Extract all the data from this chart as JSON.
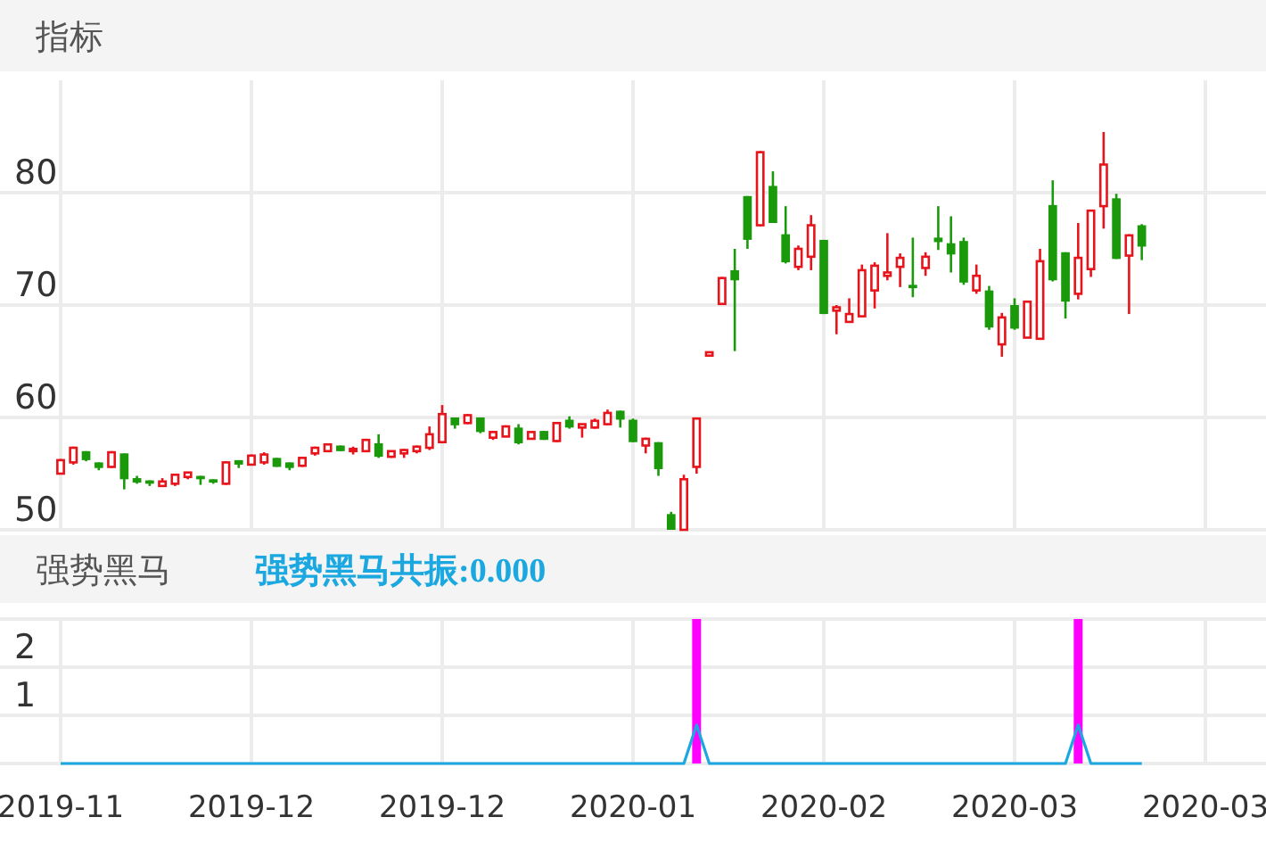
{
  "chart_data": [
    {
      "type": "candlestick",
      "title": "指标",
      "categories": [
        "2019-11",
        null,
        null,
        null,
        null,
        null,
        null,
        null,
        null,
        null,
        null,
        null,
        null,
        null,
        null,
        "2019-12",
        null,
        null,
        null,
        null,
        null,
        null,
        null,
        null,
        null,
        null,
        null,
        null,
        null,
        null,
        "2019-12",
        null,
        null,
        null,
        null,
        null,
        null,
        null,
        null,
        null,
        null,
        null,
        null,
        null,
        null,
        "2020-01",
        null,
        null,
        null,
        null,
        null,
        null,
        null,
        null,
        null,
        null,
        null,
        null,
        null,
        null,
        "2020-02",
        null,
        null,
        null,
        null,
        null,
        null,
        null,
        null,
        null,
        null,
        null,
        null,
        null,
        null,
        "2020-03",
        null,
        null,
        null,
        null,
        null,
        null,
        null,
        null,
        null,
        null,
        null,
        null,
        null,
        null,
        "2020-03"
      ],
      "ohlc": [
        [
          55.0,
          56.3,
          55.0,
          56.2
        ],
        [
          56.0,
          57.4,
          55.8,
          57.3
        ],
        [
          57.0,
          57.0,
          56.1,
          56.2
        ],
        [
          56.0,
          56.0,
          55.3,
          55.5
        ],
        [
          55.6,
          57.0,
          55.5,
          56.9
        ],
        [
          56.8,
          56.8,
          53.6,
          54.5
        ],
        [
          54.6,
          54.8,
          54.1,
          54.2
        ],
        [
          54.4,
          54.4,
          53.9,
          54.1
        ],
        [
          53.9,
          54.6,
          53.9,
          54.3
        ],
        [
          54.1,
          55.0,
          53.9,
          54.9
        ],
        [
          54.7,
          55.1,
          54.5,
          55.1
        ],
        [
          54.8,
          54.8,
          54.0,
          54.5
        ],
        [
          54.5,
          54.5,
          54.1,
          54.2
        ],
        [
          54.1,
          56.1,
          54.0,
          56.0
        ],
        [
          56.2,
          56.2,
          55.5,
          55.8
        ],
        [
          55.8,
          56.7,
          55.8,
          56.6
        ],
        [
          56.0,
          56.9,
          55.8,
          56.7
        ],
        [
          56.4,
          56.4,
          55.6,
          55.6
        ],
        [
          56.0,
          56.0,
          55.3,
          55.5
        ],
        [
          55.7,
          56.4,
          55.6,
          56.4
        ],
        [
          56.8,
          57.4,
          56.6,
          57.3
        ],
        [
          57.0,
          57.7,
          56.9,
          57.6
        ],
        [
          57.5,
          57.5,
          57.0,
          57.0
        ],
        [
          57.0,
          57.4,
          56.7,
          57.2
        ],
        [
          57.0,
          58.1,
          56.9,
          58.0
        ],
        [
          57.7,
          58.5,
          56.4,
          56.5
        ],
        [
          56.5,
          57.0,
          56.4,
          57.0
        ],
        [
          56.8,
          57.2,
          56.4,
          57.1
        ],
        [
          57.0,
          57.5,
          56.8,
          57.4
        ],
        [
          57.3,
          59.2,
          57.1,
          58.5
        ],
        [
          57.8,
          61.1,
          57.7,
          60.3
        ],
        [
          60.0,
          60.0,
          59.0,
          59.3
        ],
        [
          59.5,
          60.3,
          59.4,
          60.2
        ],
        [
          60.0,
          60.0,
          58.6,
          58.7
        ],
        [
          58.2,
          58.8,
          58.0,
          58.7
        ],
        [
          58.3,
          59.3,
          58.3,
          59.2
        ],
        [
          59.1,
          59.4,
          57.6,
          57.7
        ],
        [
          58.1,
          58.7,
          58.1,
          58.7
        ],
        [
          58.8,
          58.8,
          58.0,
          58.0
        ],
        [
          57.9,
          59.6,
          57.8,
          59.5
        ],
        [
          59.8,
          60.1,
          59.0,
          59.1
        ],
        [
          59.1,
          59.4,
          58.2,
          59.4
        ],
        [
          59.1,
          59.9,
          59.0,
          59.7
        ],
        [
          59.4,
          60.7,
          59.3,
          60.4
        ],
        [
          60.6,
          60.6,
          59.1,
          59.8
        ],
        [
          59.8,
          59.9,
          57.8,
          57.8
        ],
        [
          57.5,
          58.2,
          56.8,
          58.1
        ],
        [
          57.8,
          57.8,
          54.8,
          55.4
        ],
        [
          51.4,
          51.6,
          50.0,
          50.0
        ],
        [
          50.0,
          54.9,
          50.0,
          54.5
        ],
        [
          55.6,
          59.9,
          55.0,
          59.9
        ],
        [
          65.5,
          65.8,
          65.5,
          65.8
        ],
        [
          70.1,
          72.5,
          70.1,
          72.4
        ],
        [
          73.1,
          75.0,
          65.9,
          72.2
        ],
        [
          79.7,
          79.7,
          75.0,
          75.8
        ],
        [
          77.1,
          83.7,
          77.0,
          83.6
        ],
        [
          80.6,
          81.9,
          77.3,
          77.3
        ],
        [
          76.3,
          78.8,
          73.7,
          73.8
        ],
        [
          73.4,
          75.3,
          73.1,
          75.0
        ],
        [
          74.3,
          78.0,
          73.1,
          77.1
        ],
        [
          75.8,
          75.8,
          69.2,
          69.2
        ],
        [
          69.5,
          70.0,
          67.4,
          69.8
        ],
        [
          68.5,
          70.6,
          68.5,
          69.2
        ],
        [
          69.0,
          73.6,
          69.0,
          73.1
        ],
        [
          71.3,
          73.8,
          69.7,
          73.5
        ],
        [
          72.6,
          76.4,
          72.2,
          72.9
        ],
        [
          73.4,
          74.6,
          71.6,
          74.2
        ],
        [
          71.8,
          76.0,
          70.7,
          71.5
        ],
        [
          73.3,
          74.7,
          72.6,
          74.3
        ],
        [
          76.0,
          78.8,
          74.9,
          75.6
        ],
        [
          75.5,
          77.9,
          72.9,
          74.5
        ],
        [
          75.7,
          76.0,
          71.8,
          72.0
        ],
        [
          71.3,
          73.6,
          71.0,
          72.6
        ],
        [
          71.3,
          71.7,
          67.8,
          68.0
        ],
        [
          66.5,
          69.3,
          65.4,
          68.9
        ],
        [
          70.0,
          70.6,
          67.8,
          67.9
        ],
        [
          67.1,
          70.3,
          67.1,
          70.3
        ],
        [
          67.0,
          75.0,
          66.9,
          73.9
        ],
        [
          78.9,
          81.1,
          72.1,
          72.2
        ],
        [
          74.7,
          74.7,
          68.8,
          70.3
        ],
        [
          71.0,
          77.3,
          70.5,
          74.2
        ],
        [
          73.2,
          78.4,
          72.5,
          78.4
        ],
        [
          78.8,
          85.4,
          76.8,
          82.5
        ],
        [
          79.5,
          79.9,
          74.1,
          74.1
        ],
        [
          74.4,
          76.3,
          69.2,
          76.2
        ],
        [
          77.1,
          77.2,
          74.0,
          75.2
        ],
        null,
        null,
        null,
        null,
        null
      ],
      "ylim": [
        50,
        90
      ],
      "yticks": [
        50,
        60,
        70,
        80
      ],
      "grid": true,
      "tick_labels": "y"
    },
    {
      "type": "bar",
      "title": "强势黑马",
      "annotations": [
        "强势黑马共振:0.000"
      ],
      "categories": [
        "2019-11",
        null,
        null,
        null,
        null,
        null,
        null,
        null,
        null,
        null,
        null,
        null,
        null,
        null,
        null,
        "2019-12",
        null,
        null,
        null,
        null,
        null,
        null,
        null,
        null,
        null,
        null,
        null,
        null,
        null,
        null,
        "2019-12",
        null,
        null,
        null,
        null,
        null,
        null,
        null,
        null,
        null,
        null,
        null,
        null,
        null,
        null,
        "2020-01",
        null,
        null,
        null,
        null,
        null,
        null,
        null,
        null,
        null,
        null,
        null,
        null,
        null,
        null,
        "2020-02",
        null,
        null,
        null,
        null,
        null,
        null,
        null,
        null,
        null,
        null,
        null,
        null,
        null,
        null,
        "2020-03",
        null,
        null,
        null,
        null,
        null,
        null,
        null,
        null,
        null,
        null,
        null,
        null,
        null,
        null,
        "2020-03"
      ],
      "series": [
        {
          "type": "bar",
          "color": "#ff00ff",
          "values": [
            0,
            0,
            0,
            0,
            0,
            0,
            0,
            0,
            0,
            0,
            0,
            0,
            0,
            0,
            0,
            0,
            0,
            0,
            0,
            0,
            0,
            0,
            0,
            0,
            0,
            0,
            0,
            0,
            0,
            0,
            0,
            0,
            0,
            0,
            0,
            0,
            0,
            0,
            0,
            0,
            0,
            0,
            0,
            0,
            0,
            0,
            0,
            0,
            0,
            0,
            3,
            0,
            0,
            0,
            0,
            0,
            0,
            0,
            0,
            0,
            0,
            0,
            0,
            0,
            0,
            0,
            0,
            0,
            0,
            0,
            0,
            0,
            0,
            0,
            0,
            0,
            0,
            0,
            0,
            0,
            3,
            0,
            0,
            0,
            0,
            0,
            null,
            null,
            null,
            null,
            null
          ]
        },
        {
          "type": "line",
          "color": "#1ba8e0",
          "values": [
            0,
            0,
            0,
            0,
            0,
            0,
            0,
            0,
            0,
            0,
            0,
            0,
            0,
            0,
            0,
            0,
            0,
            0,
            0,
            0,
            0,
            0,
            0,
            0,
            0,
            0,
            0,
            0,
            0,
            0,
            0,
            0,
            0,
            0,
            0,
            0,
            0,
            0,
            0,
            0,
            0,
            0,
            0,
            0,
            0,
            0,
            0,
            0,
            0,
            0,
            0.8,
            0,
            0,
            0,
            0,
            0,
            0,
            0,
            0,
            0,
            0,
            0,
            0,
            0,
            0,
            0,
            0,
            0,
            0,
            0,
            0,
            0,
            0,
            0,
            0,
            0,
            0,
            0,
            0,
            0,
            0.8,
            0,
            0,
            0,
            0,
            0,
            null,
            null,
            null,
            null,
            null
          ]
        }
      ],
      "ylim": [
        0,
        3
      ],
      "yticks": [
        {
          "value": 0,
          "label": null
        },
        1,
        2,
        {
          "value": 3,
          "label": null
        }
      ],
      "grid": true
    }
  ]
}
